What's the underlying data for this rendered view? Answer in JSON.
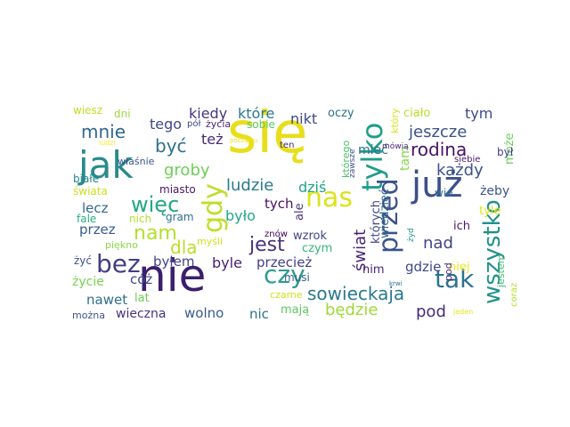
{
  "words": [
    {
      "text": "się",
      "color": "#e8de1a"
    },
    {
      "text": "nie",
      "color": "#3b1f6e"
    },
    {
      "text": "jak",
      "color": "#2a8a8a"
    },
    {
      "text": "już",
      "color": "#3d4f8c"
    },
    {
      "text": "nas",
      "color": "#dde21b"
    },
    {
      "text": "tylko",
      "color": "#1f9e89"
    },
    {
      "text": "gdy",
      "color": "#bddf26"
    },
    {
      "text": "przed",
      "color": "#3a538b"
    },
    {
      "text": "tak",
      "color": "#2c728e"
    },
    {
      "text": "bez",
      "color": "#433e85"
    },
    {
      "text": "czy",
      "color": "#2f9b8f"
    },
    {
      "text": "jest",
      "color": "#46327e"
    },
    {
      "text": "więc",
      "color": "#22a884"
    },
    {
      "text": "wszystko",
      "color": "#21918c"
    },
    {
      "text": "sowieckaja",
      "color": "#2a788e"
    },
    {
      "text": "nam",
      "color": "#b5de2b"
    },
    {
      "text": "rodina",
      "color": "#471164"
    },
    {
      "text": "jeszcze",
      "color": "#3b528b"
    },
    {
      "text": "być",
      "color": "#2d708e"
    },
    {
      "text": "mnie",
      "color": "#31688e"
    },
    {
      "text": "dla",
      "color": "#bddf26"
    },
    {
      "text": "ludzie",
      "color": "#2a788e"
    },
    {
      "text": "groby",
      "color": "#6ece58"
    },
    {
      "text": "każdy",
      "color": "#3b528b"
    },
    {
      "text": "pod",
      "color": "#472c7a"
    },
    {
      "text": "nad",
      "color": "#414487"
    },
    {
      "text": "świat",
      "color": "#482475"
    },
    {
      "text": "będzie",
      "color": "#a0da39"
    },
    {
      "text": "tym",
      "color": "#3e4989"
    },
    {
      "text": "tego",
      "color": "#3e4989"
    },
    {
      "text": "kiedy",
      "color": "#46337e"
    },
    {
      "text": "które",
      "color": "#2a788e"
    },
    {
      "text": "nikt",
      "color": "#3e4989"
    },
    {
      "text": "też",
      "color": "#482878"
    },
    {
      "text": "dziś",
      "color": "#20a386"
    },
    {
      "text": "było",
      "color": "#22a884"
    },
    {
      "text": "byle",
      "color": "#481f70"
    },
    {
      "text": "byłem",
      "color": "#414487"
    },
    {
      "text": "lecz",
      "color": "#31688e"
    },
    {
      "text": "przez",
      "color": "#365c8d"
    },
    {
      "text": "przecież",
      "color": "#433e85"
    },
    {
      "text": "gdzie",
      "color": "#3f4788"
    },
    {
      "text": "wolno",
      "color": "#365c8d"
    },
    {
      "text": "nic",
      "color": "#2c728e"
    },
    {
      "text": "mają",
      "color": "#5ec962"
    },
    {
      "text": "cóż",
      "color": "#3e4989"
    },
    {
      "text": "nawet",
      "color": "#2e6f8e"
    },
    {
      "text": "wieczna",
      "color": "#46327e"
    },
    {
      "text": "życie",
      "color": "#7ad151"
    },
    {
      "text": "lat",
      "color": "#6ece58"
    },
    {
      "text": "tych",
      "color": "#471063"
    },
    {
      "text": "czym",
      "color": "#35b779"
    },
    {
      "text": "wzrok",
      "color": "#404688"
    },
    {
      "text": "mieć",
      "color": "#2b748e"
    },
    {
      "text": "tam",
      "color": "#86d549"
    },
    {
      "text": "może",
      "color": "#6ece58"
    },
    {
      "text": "ich",
      "color": "#48186a"
    },
    {
      "text": "żeby",
      "color": "#3b528b"
    },
    {
      "text": "tyle",
      "color": "#e2e418"
    },
    {
      "text": "wie",
      "color": "#2e6e8e"
    },
    {
      "text": "nim",
      "color": "#482475"
    },
    {
      "text": "niej",
      "color": "#efe51c"
    },
    {
      "text": "ale",
      "color": "#46327e"
    },
    {
      "text": "oczy",
      "color": "#2c728e"
    },
    {
      "text": "ciało",
      "color": "#b8de29"
    },
    {
      "text": "wiesz",
      "color": "#c2df23"
    },
    {
      "text": "dni",
      "color": "#9bd93c"
    },
    {
      "text": "życia",
      "color": "#481f70"
    },
    {
      "text": "pół",
      "color": "#3e4989"
    },
    {
      "text": "sobie",
      "color": "#5ec962"
    },
    {
      "text": "ten",
      "color": "#482878"
    },
    {
      "text": "miasto",
      "color": "#481467"
    },
    {
      "text": "gram",
      "color": "#2d708e"
    },
    {
      "text": "nich",
      "color": "#b5de2b"
    },
    {
      "text": "fale",
      "color": "#27ad81"
    },
    {
      "text": "świata",
      "color": "#c8e020"
    },
    {
      "text": "białe",
      "color": "#25848e"
    },
    {
      "text": "właśnie",
      "color": "#3b528b"
    },
    {
      "text": "ludzi",
      "color": "#fde725"
    },
    {
      "text": "piękno",
      "color": "#8bd646"
    },
    {
      "text": "myśli",
      "color": "#cde11d"
    },
    {
      "text": "musi",
      "color": "#33638d"
    },
    {
      "text": "czarne",
      "color": "#d0e11c"
    },
    {
      "text": "znów",
      "color": "#440154"
    },
    {
      "text": "żyć",
      "color": "#3b528b"
    },
    {
      "text": "można",
      "color": "#39568c"
    },
    {
      "text": "który",
      "color": "#d8e219"
    },
    {
      "text": "mówią",
      "color": "#482979"
    },
    {
      "text": "siebie",
      "color": "#481a6c"
    },
    {
      "text": "był",
      "color": "#433e85"
    },
    {
      "text": "którego",
      "color": "#4ac16d"
    },
    {
      "text": "zawsze",
      "color": "#3b528b"
    },
    {
      "text": "których",
      "color": "#3f4788"
    },
    {
      "text": "wiedzieć",
      "color": "#31688e"
    },
    {
      "text": "żyd",
      "color": "#21918c"
    },
    {
      "text": "krwi",
      "color": "#2e6e8e"
    },
    {
      "text": "jestem",
      "color": "#3fbc73"
    },
    {
      "text": "coraz",
      "color": "#b5de2b"
    },
    {
      "text": "jeden",
      "color": "#e5e419"
    },
    {
      "text": "początku",
      "color": "#f1e51d"
    },
    {
      "text": "pod",
      "color": "#482878"
    }
  ]
}
